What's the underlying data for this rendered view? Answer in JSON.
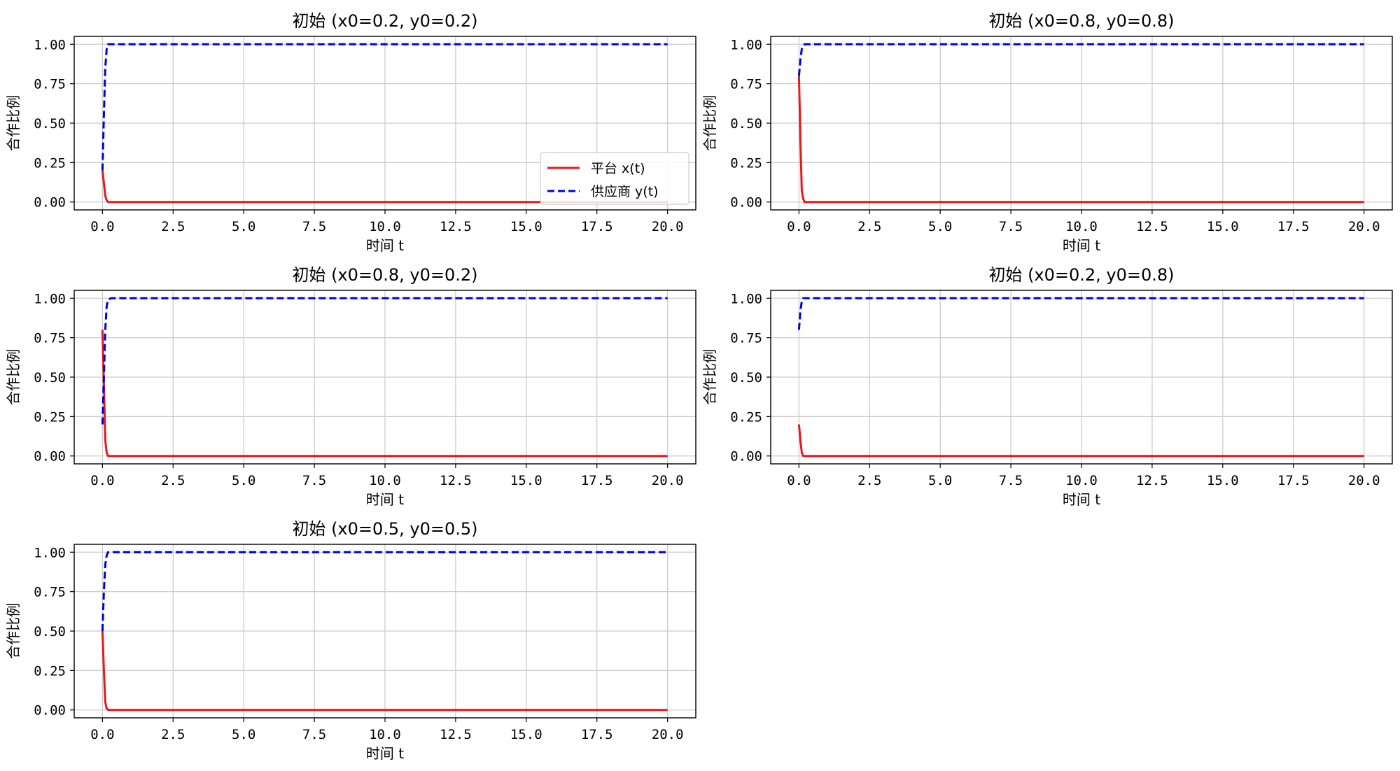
{
  "colors": {
    "x_series": "#e41a1c",
    "y_series": "#0000dd",
    "grid": "#cccccc",
    "axes": "#000000"
  },
  "chart_data": [
    {
      "type": "line",
      "title": "初始 (x0=0.2, y0=0.2)",
      "xlabel": "时间 t",
      "ylabel": "合作比例",
      "xlim": [
        -1.0,
        21.0
      ],
      "ylim": [
        -0.05,
        1.05
      ],
      "xticks": [
        "0.0",
        "2.5",
        "5.0",
        "7.5",
        "10.0",
        "12.5",
        "15.0",
        "17.5",
        "20.0"
      ],
      "yticks": [
        "0.00",
        "0.25",
        "0.50",
        "0.75",
        "1.00"
      ],
      "grid": true,
      "legend": {
        "position": "lower-right",
        "entries": [
          "平台 x(t)",
          "供应商 y(t)"
        ]
      },
      "series": [
        {
          "name": "平台 x(t)",
          "style": "solid",
          "color": "red",
          "x": [
            0,
            0.05,
            0.1,
            0.15,
            0.2,
            0.3,
            0.5,
            20
          ],
          "y": [
            0.2,
            0.12,
            0.04,
            0.01,
            0.0,
            0.0,
            0.0,
            0.0
          ]
        },
        {
          "name": "供应商 y(t)",
          "style": "dashed",
          "color": "blue",
          "x": [
            0,
            0.05,
            0.1,
            0.15,
            0.2,
            0.3,
            0.5,
            20
          ],
          "y": [
            0.2,
            0.55,
            0.85,
            0.97,
            1.0,
            1.0,
            1.0,
            1.0
          ]
        }
      ]
    },
    {
      "type": "line",
      "title": "初始 (x0=0.8, y0=0.8)",
      "xlabel": "时间 t",
      "ylabel": "合作比例",
      "xlim": [
        -1.0,
        21.0
      ],
      "ylim": [
        -0.05,
        1.05
      ],
      "xticks": [
        "0.0",
        "2.5",
        "5.0",
        "7.5",
        "10.0",
        "12.5",
        "15.0",
        "17.5",
        "20.0"
      ],
      "yticks": [
        "0.00",
        "0.25",
        "0.50",
        "0.75",
        "1.00"
      ],
      "grid": true,
      "series": [
        {
          "name": "平台 x(t)",
          "style": "solid",
          "color": "red",
          "x": [
            0,
            0.05,
            0.1,
            0.15,
            0.2,
            0.3,
            0.5,
            20
          ],
          "y": [
            0.8,
            0.4,
            0.07,
            0.02,
            0.0,
            0.0,
            0.0,
            0.0
          ]
        },
        {
          "name": "供应商 y(t)",
          "style": "dashed",
          "color": "blue",
          "x": [
            0,
            0.05,
            0.1,
            0.15,
            0.2,
            0.3,
            0.5,
            20
          ],
          "y": [
            0.8,
            0.9,
            0.97,
            0.99,
            1.0,
            1.0,
            1.0,
            1.0
          ]
        }
      ]
    },
    {
      "type": "line",
      "title": "初始 (x0=0.8, y0=0.2)",
      "xlabel": "时间 t",
      "ylabel": "合作比例",
      "xlim": [
        -1.0,
        21.0
      ],
      "ylim": [
        -0.05,
        1.05
      ],
      "xticks": [
        "0.0",
        "2.5",
        "5.0",
        "7.5",
        "10.0",
        "12.5",
        "15.0",
        "17.5",
        "20.0"
      ],
      "yticks": [
        "0.00",
        "0.25",
        "0.50",
        "0.75",
        "1.00"
      ],
      "grid": true,
      "series": [
        {
          "name": "平台 x(t)",
          "style": "solid",
          "color": "red",
          "x": [
            0,
            0.05,
            0.1,
            0.15,
            0.2,
            0.3,
            0.5,
            20
          ],
          "y": [
            0.8,
            0.45,
            0.1,
            0.02,
            0.0,
            0.0,
            0.0,
            0.0
          ]
        },
        {
          "name": "供应商 y(t)",
          "style": "dashed",
          "color": "blue",
          "x": [
            0,
            0.05,
            0.1,
            0.15,
            0.2,
            0.3,
            0.5,
            20
          ],
          "y": [
            0.2,
            0.5,
            0.8,
            0.95,
            0.99,
            1.0,
            1.0,
            1.0
          ]
        }
      ]
    },
    {
      "type": "line",
      "title": "初始 (x0=0.2, y0=0.8)",
      "xlabel": "时间 t",
      "ylabel": "合作比例",
      "xlim": [
        -1.0,
        21.0
      ],
      "ylim": [
        -0.05,
        1.05
      ],
      "xticks": [
        "0.0",
        "2.5",
        "5.0",
        "7.5",
        "10.0",
        "12.5",
        "15.0",
        "17.5",
        "20.0"
      ],
      "yticks": [
        "0.00",
        "0.25",
        "0.50",
        "0.75",
        "1.00"
      ],
      "grid": true,
      "series": [
        {
          "name": "平台 x(t)",
          "style": "solid",
          "color": "red",
          "x": [
            0,
            0.05,
            0.1,
            0.15,
            0.2,
            0.3,
            0.5,
            20
          ],
          "y": [
            0.2,
            0.1,
            0.02,
            0.0,
            0.0,
            0.0,
            0.0,
            0.0
          ]
        },
        {
          "name": "供应商 y(t)",
          "style": "dashed",
          "color": "blue",
          "x": [
            0,
            0.05,
            0.1,
            0.15,
            0.2,
            0.3,
            0.5,
            20
          ],
          "y": [
            0.8,
            0.92,
            0.98,
            1.0,
            1.0,
            1.0,
            1.0,
            1.0
          ]
        }
      ]
    },
    {
      "type": "line",
      "title": "初始 (x0=0.5, y0=0.5)",
      "xlabel": "时间 t",
      "ylabel": "合作比例",
      "xlim": [
        -1.0,
        21.0
      ],
      "ylim": [
        -0.05,
        1.05
      ],
      "xticks": [
        "0.0",
        "2.5",
        "5.0",
        "7.5",
        "10.0",
        "12.5",
        "15.0",
        "17.5",
        "20.0"
      ],
      "yticks": [
        "0.00",
        "0.25",
        "0.50",
        "0.75",
        "1.00"
      ],
      "grid": true,
      "series": [
        {
          "name": "平台 x(t)",
          "style": "solid",
          "color": "red",
          "x": [
            0,
            0.05,
            0.1,
            0.15,
            0.2,
            0.3,
            0.5,
            20
          ],
          "y": [
            0.5,
            0.25,
            0.05,
            0.01,
            0.0,
            0.0,
            0.0,
            0.0
          ]
        },
        {
          "name": "供应商 y(t)",
          "style": "dashed",
          "color": "blue",
          "x": [
            0,
            0.05,
            0.1,
            0.15,
            0.2,
            0.3,
            0.5,
            20
          ],
          "y": [
            0.5,
            0.75,
            0.92,
            0.98,
            1.0,
            1.0,
            1.0,
            1.0
          ]
        }
      ]
    }
  ]
}
